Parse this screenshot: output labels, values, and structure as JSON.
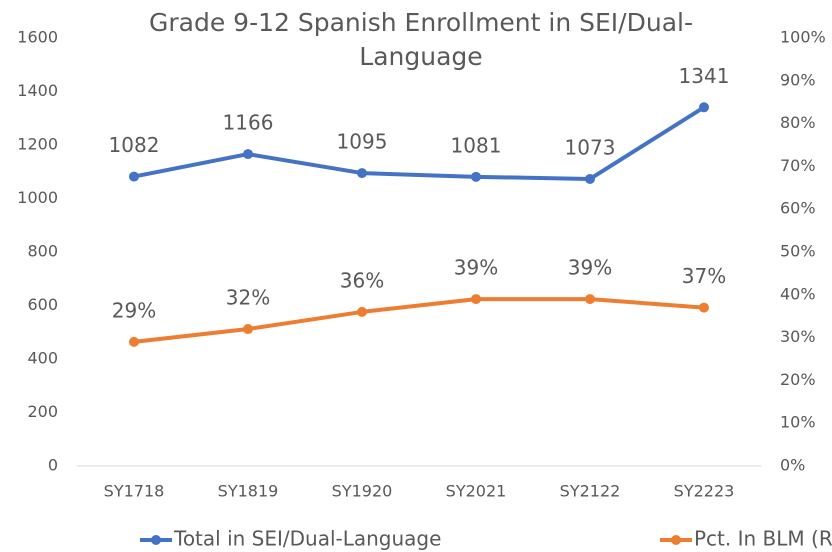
{
  "chart_data": {
    "type": "line",
    "title": "Grade 9-12 Spanish Enrollment in SEI/Dual-Language",
    "categories": [
      "SY1718",
      "SY1819",
      "SY1920",
      "SY2021",
      "SY2122",
      "SY2223"
    ],
    "series": [
      {
        "name": "Total in SEI/Dual-Language",
        "color": "#4472c4",
        "values": [
          1082,
          1166,
          1095,
          1081,
          1073,
          1341
        ]
      },
      {
        "name": "Pct. In BLM (Right Axis)",
        "color": "#ed7d31",
        "axis": "y2",
        "values": [
          29,
          32,
          36,
          39,
          39,
          37
        ],
        "value_labels": [
          "29%",
          "32%",
          "36%",
          "39%",
          "39%",
          "37%"
        ]
      }
    ],
    "ylim": [
      0,
      1600
    ],
    "yticks": [
      0,
      200,
      400,
      600,
      800,
      1000,
      1200,
      1400,
      1600
    ],
    "y2lim": [
      0,
      100
    ],
    "y2ticks": [
      {
        "value": 0,
        "label": "0%"
      },
      {
        "value": 10,
        "label": "10%"
      },
      {
        "value": 20,
        "label": "20%"
      },
      {
        "value": 30,
        "label": "30%"
      },
      {
        "value": 40,
        "label": "40%"
      },
      {
        "value": 50,
        "label": "50%"
      },
      {
        "value": 60,
        "label": "60%"
      },
      {
        "value": 70,
        "label": "70%"
      },
      {
        "value": 80,
        "label": "80%"
      },
      {
        "value": 90,
        "label": "90%"
      },
      {
        "value": 100,
        "label": "100%"
      }
    ],
    "grid": false,
    "legend": "bottom"
  }
}
